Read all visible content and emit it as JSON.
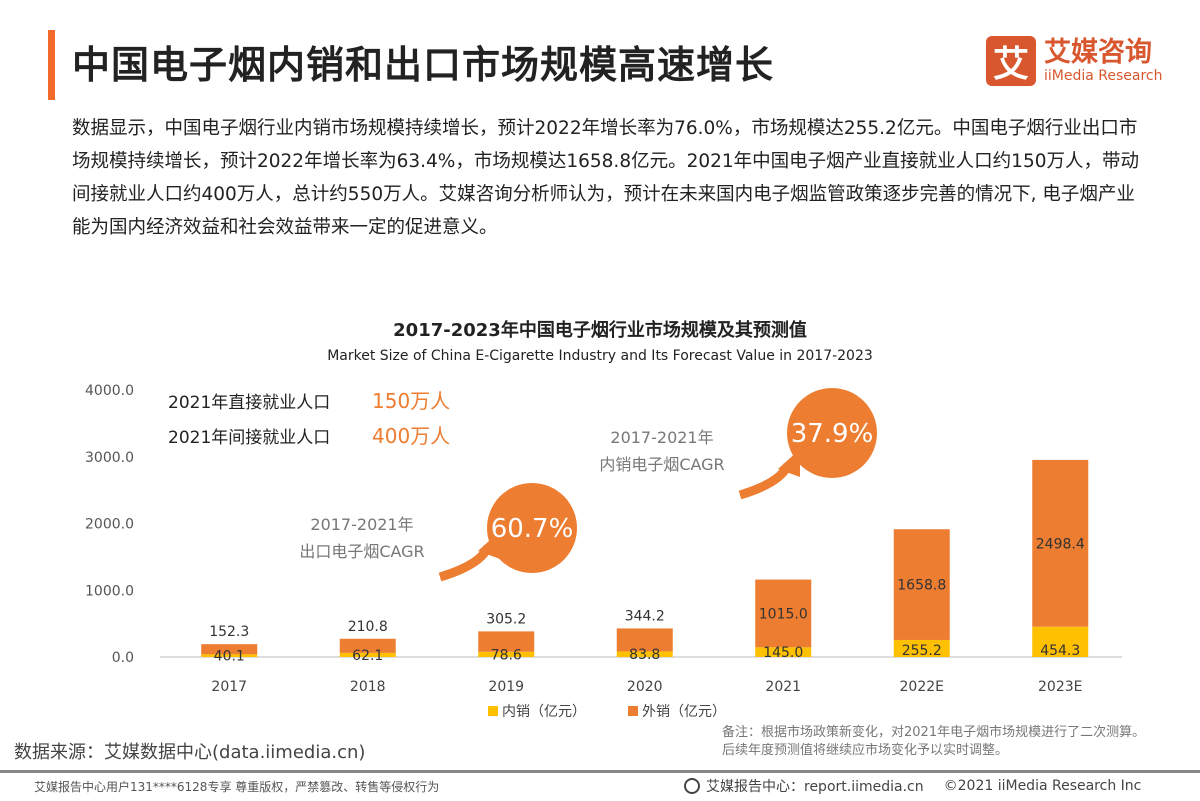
{
  "header": {
    "title": "中国电子烟内销和出口市场规模高速增长",
    "logo_cn": "艾媒咨询",
    "logo_en": "iiMedia Research",
    "logo_mark": "艾"
  },
  "paragraph": "数据显示，中国电子烟行业内销市场规模持续增长，预计2022年增长率为76.0%，市场规模达255.2亿元。中国电子烟行业出口市场规模持续增长，预计2022年增长率为63.4%，市场规模达1658.8亿元。2021年中国电子烟产业直接就业人口约150万人，带动间接就业人口约400万人，总计约550万人。艾媒咨询分析师认为，预计在未来国内电子烟监管政策逐步完善的情况下, 电子烟产业能为国内经济效益和社会效益带来一定的促进意义。",
  "employment": [
    {
      "label": "2021年直接就业人口",
      "value": "150万人"
    },
    {
      "label": "2021年间接就业人口",
      "value": "400万人"
    }
  ],
  "cagr": [
    {
      "label1": "2017-2021年",
      "label2": "出口电子烟CAGR",
      "value": "60.7%"
    },
    {
      "label1": "2017-2021年",
      "label2": "内销电子烟CAGR",
      "value": "37.9%"
    }
  ],
  "chart_data": {
    "type": "bar",
    "stacked": true,
    "title": "2017-2023年中国电子烟行业市场规模及其预测值",
    "subtitle": "Market Size of China E-Cigarette Industry and Its Forecast Value in 2017-2023",
    "categories": [
      "2017",
      "2018",
      "2019",
      "2020",
      "2021",
      "2022E",
      "2023E"
    ],
    "yticks": [
      "0.0",
      "1000.0",
      "2000.0",
      "3000.0",
      "4000.0"
    ],
    "ylim": [
      0,
      4000
    ],
    "series": [
      {
        "name": "内销（亿元）",
        "color": "#FFC000",
        "values": [
          40.1,
          62.1,
          78.6,
          83.8,
          145.0,
          255.2,
          454.3
        ],
        "labels": [
          "40.1",
          "62.1",
          "78.6",
          "83.8",
          "145.0",
          "255.2",
          "454.3"
        ]
      },
      {
        "name": "外销（亿元）",
        "color": "#ED7D31",
        "values": [
          152.3,
          210.8,
          305.2,
          344.2,
          1015.0,
          1658.8,
          2498.4
        ],
        "labels": [
          "152.3",
          "210.8",
          "305.2",
          "344.2",
          "1015.0",
          "1658.8",
          "2498.4"
        ]
      }
    ],
    "legend": "bottom"
  },
  "source": "数据来源：艾媒数据中心(data.iimedia.cn)",
  "note": "备注：根据市场政策新变化，对2021年电子烟市场规模进行了二次测算。后续年度预测值将继续应市场变化予以实时调整。",
  "footer": {
    "left": "艾媒报告中心用户131****6128专享 尊重版权，严禁篡改、转售等侵权行为",
    "center": "艾媒报告中心：report.iimedia.cn",
    "right": "©2021  iiMedia Research  Inc"
  }
}
